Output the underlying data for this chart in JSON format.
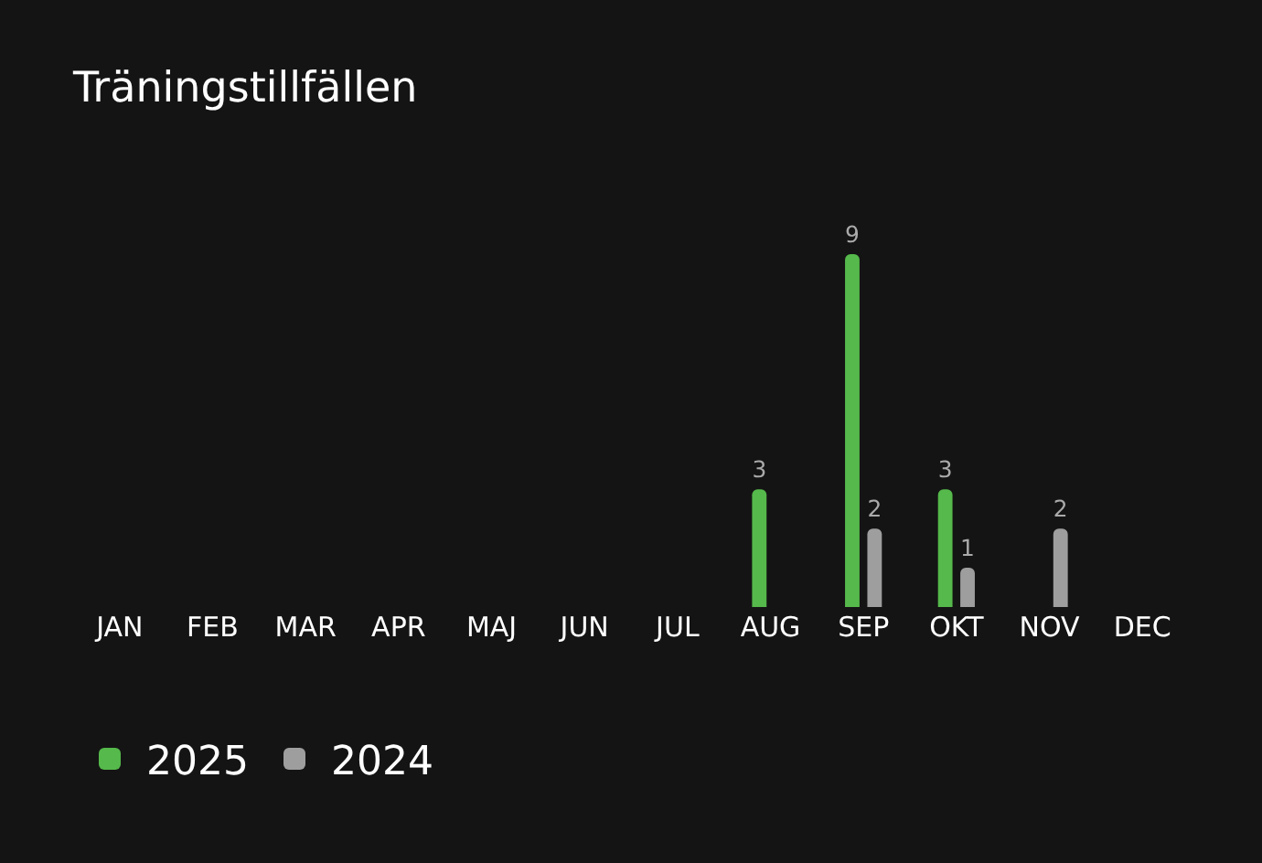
{
  "chart_data": {
    "type": "bar",
    "title": "Träningstillfällen",
    "categories": [
      "JAN",
      "FEB",
      "MAR",
      "APR",
      "MAJ",
      "JUN",
      "JUL",
      "AUG",
      "SEP",
      "OKT",
      "NOV",
      "DEC"
    ],
    "series": [
      {
        "name": "2025",
        "color": "#55b94b",
        "values": [
          null,
          null,
          null,
          null,
          null,
          null,
          null,
          3,
          9,
          3,
          null,
          null
        ]
      },
      {
        "name": "2024",
        "color": "#9e9e9e",
        "values": [
          null,
          null,
          null,
          null,
          null,
          null,
          null,
          null,
          2,
          1,
          2,
          null
        ]
      }
    ],
    "data_labels": true,
    "legend": "bottom left",
    "grid": false
  }
}
